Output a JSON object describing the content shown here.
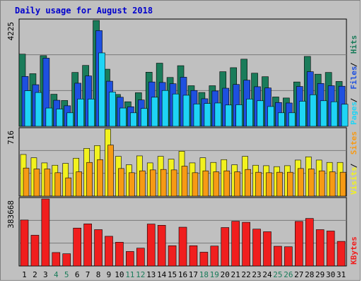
{
  "chart_data": {
    "type": "bar",
    "title": "Daily usage for August 2018",
    "categories": [
      "1",
      "2",
      "3",
      "4",
      "5",
      "6",
      "7",
      "8",
      "9",
      "10",
      "11",
      "12",
      "13",
      "14",
      "15",
      "16",
      "17",
      "18",
      "19",
      "20",
      "21",
      "22",
      "23",
      "24",
      "25",
      "26",
      "27",
      "28",
      "29",
      "30",
      "31"
    ],
    "weekend_days": [
      "4",
      "5",
      "11",
      "12",
      "18",
      "19",
      "25",
      "26"
    ],
    "panels": [
      {
        "id": "pages_files_hits",
        "ymax_label": "4225",
        "ylim": [
          0,
          4225
        ],
        "legend": [
          "Pages",
          "Files",
          "Hits"
        ],
        "series": [
          {
            "name": "Hits",
            "color": "#1a7c5a",
            "values": [
              2880,
              2100,
              2820,
              1280,
              1030,
              2150,
              2430,
              4225,
              2280,
              1270,
              980,
              1340,
              2160,
              2520,
              1950,
              2420,
              1620,
              1350,
              1620,
              2180,
              2340,
              2680,
              2120,
              1980,
              1170,
              1130,
              1770,
              2790,
              2080,
              2150,
              1790
            ]
          },
          {
            "name": "Files",
            "color": "#1e50e0",
            "values": [
              1990,
              1660,
              2720,
              1040,
              820,
              1720,
              2010,
              3820,
              1800,
              1160,
              780,
              1050,
              1770,
              1750,
              1700,
              1960,
              1430,
              1100,
              1410,
              1520,
              1670,
              1840,
              1580,
              1530,
              950,
              930,
              1590,
              2180,
              1710,
              1620,
              1600
            ]
          },
          {
            "name": "Pages",
            "color": "#1ed4f5",
            "values": [
              1420,
              1350,
              730,
              690,
              540,
              1090,
              1090,
              2930,
              1370,
              730,
              540,
              710,
              1160,
              1430,
              1290,
              1240,
              890,
              910,
              930,
              850,
              860,
              1090,
              1020,
              790,
              540,
              540,
              1000,
              1260,
              1020,
              980,
              880
            ]
          }
        ]
      },
      {
        "id": "visits_sites",
        "ymax_label": "716",
        "ylim": [
          0,
          716
        ],
        "legend": [
          "Visits",
          "Sites"
        ],
        "series": [
          {
            "name": "Visits",
            "color": "#f2f21e",
            "values": [
              445,
              410,
              355,
              330,
              350,
              405,
              510,
              540,
              716,
              425,
              335,
              430,
              355,
              425,
              395,
              480,
              355,
              410,
              360,
              390,
              335,
              425,
              330,
              325,
              315,
              325,
              385,
              420,
              385,
              360,
              360
            ]
          },
          {
            "name": "Sites",
            "color": "#f79a14",
            "values": [
              300,
              290,
              290,
              250,
              195,
              260,
              360,
              390,
              545,
              295,
              250,
              270,
              280,
              285,
              280,
              320,
              250,
              270,
              260,
              270,
              260,
              285,
              255,
              250,
              255,
              255,
              295,
              290,
              270,
              260,
              255
            ]
          }
        ]
      },
      {
        "id": "kbytes",
        "ymax_label": "383668",
        "ylim": [
          0,
          383668
        ],
        "legend": [
          "KBytes"
        ],
        "series": [
          {
            "name": "KBytes",
            "color": "#f01e1e",
            "values": [
              263000,
              176000,
              383668,
              77000,
              70000,
              217000,
              241000,
              208000,
              170000,
              136000,
              83000,
              102000,
              240000,
              233000,
              116000,
              222000,
              116000,
              79000,
              114000,
              220000,
              256000,
              250000,
              211000,
              196000,
              113000,
              110000,
              255000,
              272000,
              208000,
              200000,
              141000
            ]
          }
        ]
      }
    ]
  }
}
